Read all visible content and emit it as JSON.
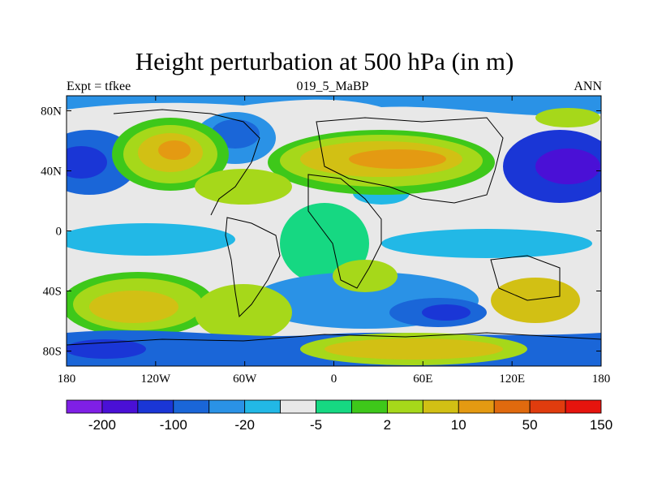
{
  "figure": {
    "title": "Height perturbation at 500 hPa (in m)",
    "left_string": "Expt = tfkee",
    "center_string": "019_5_MaBP",
    "right_string": "ANN"
  },
  "map": {
    "projection": "cylindrical equidistant",
    "lon_range": [
      -180,
      180
    ],
    "lat_range": [
      -90,
      90
    ],
    "x_ticks": [
      "180",
      "120W",
      "60W",
      "0",
      "60E",
      "120E",
      "180"
    ],
    "y_ticks": [
      "80N",
      "40N",
      "0",
      "40S",
      "80S"
    ],
    "x_tick_values": [
      -180,
      -120,
      -60,
      0,
      60,
      120,
      180
    ],
    "y_tick_values": [
      80,
      40,
      0,
      -40,
      -80
    ]
  },
  "colorbar": {
    "colors": [
      "#7f1fe6",
      "#4a10d6",
      "#1a36d6",
      "#1a66d8",
      "#2a92e6",
      "#22b8e6",
      "#e8e8e8",
      "#16d882",
      "#3ec81a",
      "#a6d81a",
      "#d2c014",
      "#e49a12",
      "#e06a0e",
      "#e03c0e",
      "#e6140e"
    ],
    "labels": [
      "-200",
      "-100",
      "-20",
      "-5",
      "2",
      "10",
      "50",
      "150"
    ]
  },
  "field_features": [
    {
      "type": "positive",
      "lon": -130,
      "lat": 55,
      "level": 9
    },
    {
      "type": "positive",
      "lon": 10,
      "lat": 50,
      "level": 10
    },
    {
      "type": "positive",
      "lon": 80,
      "lat": 50,
      "level": 9
    },
    {
      "type": "negative",
      "lon": -170,
      "lat": 45,
      "level": 3
    },
    {
      "type": "negative",
      "lon": 160,
      "lat": 45,
      "level": 1
    },
    {
      "type": "negative",
      "lon": -75,
      "lat": 58,
      "level": 4
    },
    {
      "type": "negative",
      "lon": 75,
      "lat": -55,
      "level": 2
    },
    {
      "type": "positive",
      "lon": -140,
      "lat": -55,
      "level": 10
    },
    {
      "type": "positive",
      "lon": -60,
      "lat": -60,
      "level": 10
    },
    {
      "type": "positive",
      "lon": 120,
      "lat": -40,
      "level": 10
    },
    {
      "type": "positive",
      "lon": 60,
      "lat": -80,
      "level": 10
    },
    {
      "type": "negative",
      "lon": -150,
      "lat": -80,
      "level": 3
    }
  ]
}
